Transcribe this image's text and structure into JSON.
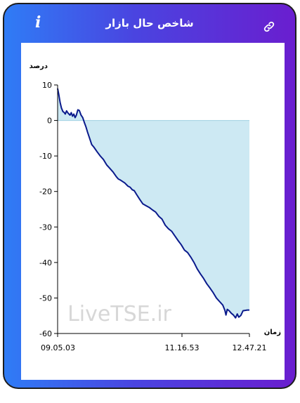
{
  "header": {
    "title": "شاخص حال بازار",
    "info_icon": "i",
    "link_icon": "link-icon"
  },
  "colors": {
    "gradient_start": "#2f7cf6",
    "gradient_end": "#6a1ecf",
    "line": "#0a1a8c",
    "fill": "#cde9f3"
  },
  "watermark": "LiveTSE.ir",
  "chart_data": {
    "type": "area",
    "ylabel": "درصد",
    "xlabel": "زمان",
    "ylim": [
      -60,
      10
    ],
    "yticks": [
      10,
      0,
      -10,
      -20,
      -30,
      -40,
      -50,
      -60
    ],
    "xticks": [
      "09.05.03",
      "11.16.53",
      "12.47.21"
    ],
    "grid": false,
    "series": [
      {
        "points": [
          [
            0.0,
            9.0
          ],
          [
            0.5,
            7.5
          ],
          [
            1.2,
            5.0
          ],
          [
            1.8,
            3.5
          ],
          [
            2.5,
            2.5
          ],
          [
            3.0,
            2.3
          ],
          [
            3.6,
            1.8
          ],
          [
            4.2,
            2.7
          ],
          [
            5.0,
            2.0
          ],
          [
            5.8,
            1.5
          ],
          [
            6.4,
            2.2
          ],
          [
            7.0,
            1.2
          ],
          [
            7.6,
            1.8
          ],
          [
            8.2,
            0.8
          ],
          [
            8.8,
            1.5
          ],
          [
            9.5,
            3.0
          ],
          [
            10.2,
            2.8
          ],
          [
            11.0,
            1.5
          ],
          [
            11.8,
            0.8
          ],
          [
            12.5,
            -0.5
          ],
          [
            13.3,
            -1.8
          ],
          [
            14.0,
            -3.2
          ],
          [
            15.0,
            -5.0
          ],
          [
            16.0,
            -6.8
          ],
          [
            17.0,
            -7.5
          ],
          [
            18.5,
            -8.8
          ],
          [
            20.0,
            -10.0
          ],
          [
            21.5,
            -11.0
          ],
          [
            23.0,
            -12.5
          ],
          [
            24.5,
            -13.5
          ],
          [
            26.0,
            -14.5
          ],
          [
            27.5,
            -15.8
          ],
          [
            28.5,
            -16.5
          ],
          [
            29.5,
            -16.8
          ],
          [
            30.5,
            -17.2
          ],
          [
            31.5,
            -17.6
          ],
          [
            33.0,
            -18.5
          ],
          [
            34.0,
            -18.8
          ],
          [
            35.0,
            -19.5
          ],
          [
            36.0,
            -19.8
          ],
          [
            37.0,
            -20.8
          ],
          [
            38.5,
            -22.2
          ],
          [
            40.0,
            -23.5
          ],
          [
            41.5,
            -24.0
          ],
          [
            43.0,
            -24.5
          ],
          [
            44.5,
            -25.2
          ],
          [
            46.0,
            -25.8
          ],
          [
            47.5,
            -27.0
          ],
          [
            49.0,
            -27.8
          ],
          [
            50.5,
            -29.5
          ],
          [
            52.0,
            -30.5
          ],
          [
            53.5,
            -31.2
          ],
          [
            55.0,
            -32.5
          ],
          [
            56.5,
            -33.8
          ],
          [
            58.0,
            -35.0
          ],
          [
            59.5,
            -36.5
          ],
          [
            61.0,
            -37.2
          ],
          [
            62.5,
            -38.5
          ],
          [
            64.0,
            -40.0
          ],
          [
            65.5,
            -41.8
          ],
          [
            67.0,
            -43.2
          ],
          [
            68.5,
            -44.5
          ],
          [
            70.0,
            -46.0
          ],
          [
            71.5,
            -47.2
          ],
          [
            73.0,
            -48.5
          ],
          [
            74.5,
            -50.0
          ],
          [
            76.0,
            -51.0
          ],
          [
            77.5,
            -52.0
          ],
          [
            78.5,
            -53.5
          ],
          [
            79.0,
            -54.8
          ],
          [
            79.6,
            -53.2
          ],
          [
            80.5,
            -53.6
          ],
          [
            81.5,
            -54.3
          ],
          [
            82.5,
            -54.8
          ],
          [
            83.5,
            -55.6
          ],
          [
            84.3,
            -54.5
          ],
          [
            85.0,
            -55.4
          ],
          [
            86.0,
            -54.9
          ],
          [
            87.0,
            -53.6
          ],
          [
            88.0,
            -53.5
          ],
          [
            89.0,
            -53.4
          ],
          [
            90.0,
            -53.4
          ]
        ]
      }
    ]
  }
}
